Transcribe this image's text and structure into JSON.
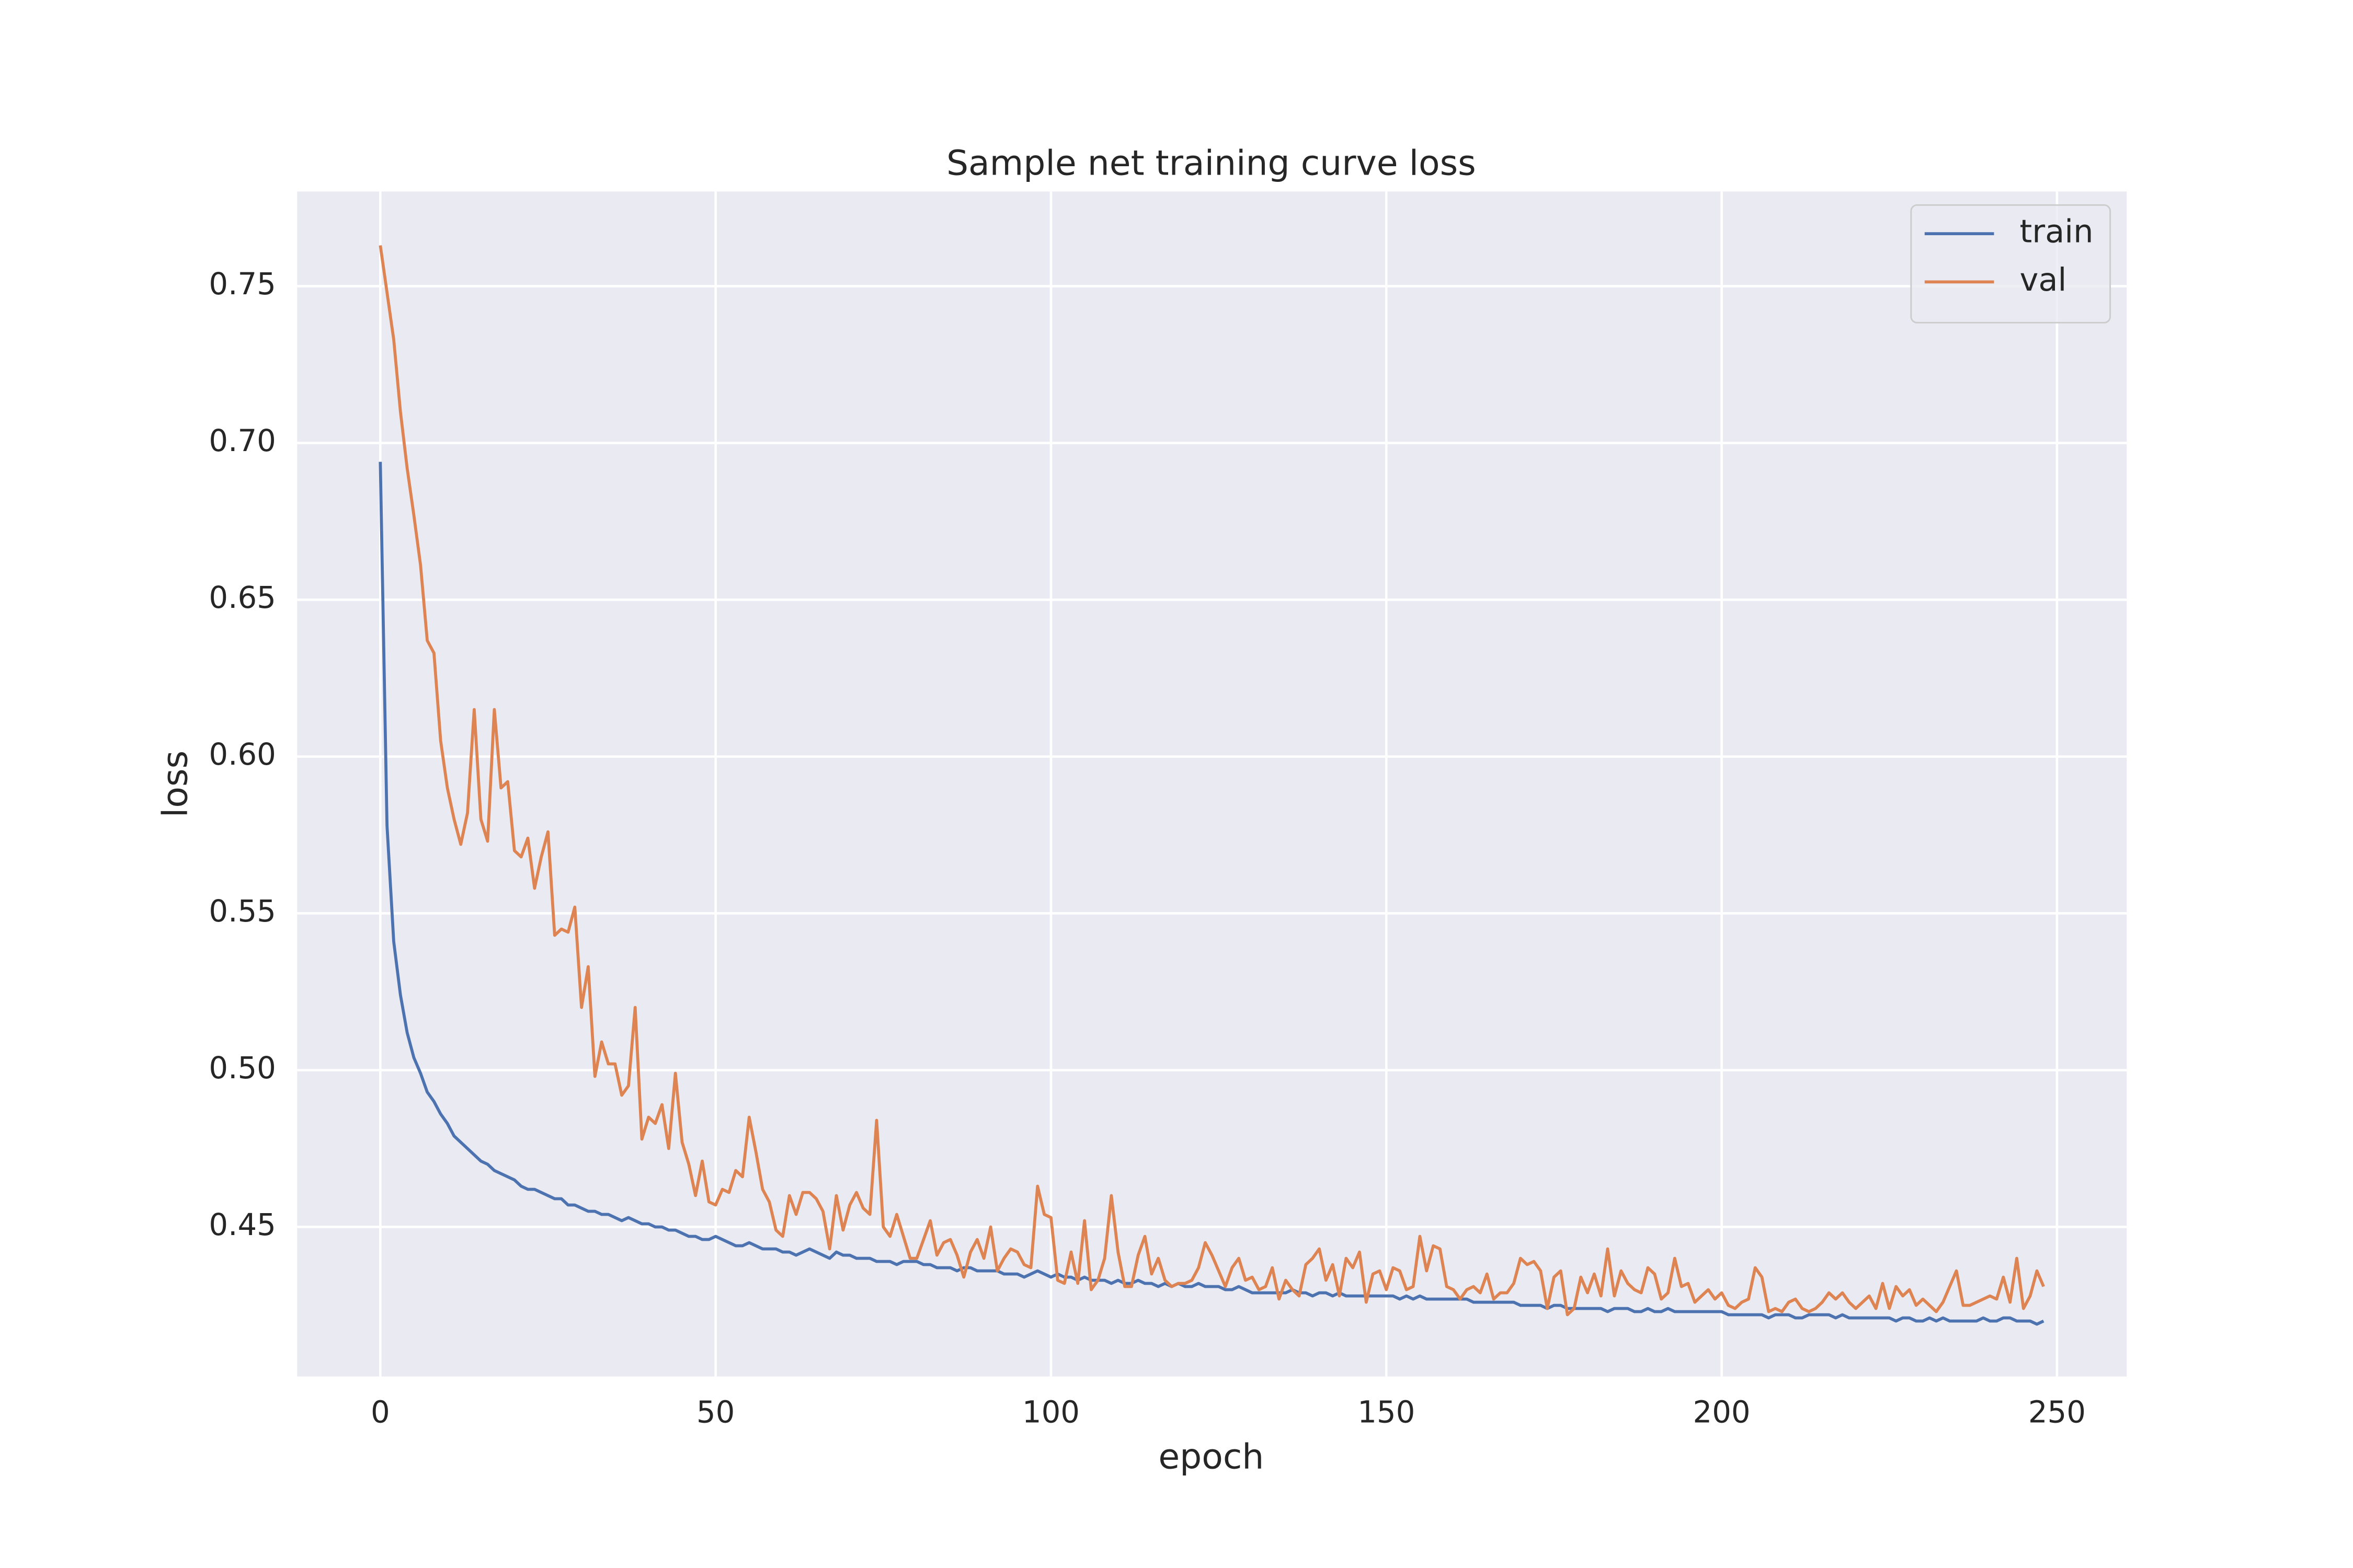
{
  "chart_data": {
    "type": "line",
    "title": "Sample net training curve loss",
    "xlabel": "epoch",
    "ylabel": "loss",
    "xlim": [
      -12.4,
      260.4
    ],
    "ylim": [
      0.4023,
      0.7802
    ],
    "xticks": [
      0,
      50,
      100,
      150,
      200,
      250
    ],
    "yticks": [
      0.45,
      {
        "value": 0.5,
        "label": "0.50"
      },
      0.55,
      {
        "value": 0.6,
        "label": "0.60"
      },
      0.65,
      {
        "value": 0.7,
        "label": "0.70"
      },
      0.75
    ],
    "grid": true,
    "legend": "upper right",
    "x": [
      0,
      1,
      2,
      3,
      4,
      5,
      6,
      7,
      8,
      9,
      10,
      11,
      12,
      13,
      14,
      15,
      16,
      17,
      18,
      19,
      20,
      21,
      22,
      23,
      24,
      25,
      26,
      27,
      28,
      29,
      30,
      31,
      32,
      33,
      34,
      35,
      36,
      37,
      38,
      39,
      40,
      41,
      42,
      43,
      44,
      45,
      46,
      47,
      48,
      49,
      50,
      51,
      52,
      53,
      54,
      55,
      56,
      57,
      58,
      59,
      60,
      61,
      62,
      63,
      64,
      65,
      66,
      67,
      68,
      69,
      70,
      71,
      72,
      73,
      74,
      75,
      76,
      77,
      78,
      79,
      80,
      81,
      82,
      83,
      84,
      85,
      86,
      87,
      88,
      89,
      90,
      91,
      92,
      93,
      94,
      95,
      96,
      97,
      98,
      99,
      100,
      101,
      102,
      103,
      104,
      105,
      106,
      107,
      108,
      109,
      110,
      111,
      112,
      113,
      114,
      115,
      116,
      117,
      118,
      119,
      120,
      121,
      122,
      123,
      124,
      125,
      126,
      127,
      128,
      129,
      130,
      131,
      132,
      133,
      134,
      135,
      136,
      137,
      138,
      139,
      140,
      141,
      142,
      143,
      144,
      145,
      146,
      147,
      148,
      149,
      150,
      151,
      152,
      153,
      154,
      155,
      156,
      157,
      158,
      159,
      160,
      161,
      162,
      163,
      164,
      165,
      166,
      167,
      168,
      169,
      170,
      171,
      172,
      173,
      174,
      175,
      176,
      177,
      178,
      179,
      180,
      181,
      182,
      183,
      184,
      185,
      186,
      187,
      188,
      189,
      190,
      191,
      192,
      193,
      194,
      195,
      196,
      197,
      198,
      199,
      200,
      201,
      202,
      203,
      204,
      205,
      206,
      207,
      208,
      209,
      210,
      211,
      212,
      213,
      214,
      215,
      216,
      217,
      218,
      219,
      220,
      221,
      222,
      223,
      224,
      225,
      226,
      227,
      228,
      229,
      230,
      231,
      232,
      233,
      234,
      235,
      236,
      237,
      238,
      239,
      240,
      241,
      242,
      243,
      244,
      245,
      246,
      247,
      248
    ],
    "series": [
      {
        "name": "train",
        "color": "#4c72b0",
        "values": [
          0.694,
          0.578,
          0.541,
          0.524,
          0.512,
          0.504,
          0.499,
          0.493,
          0.49,
          0.486,
          0.483,
          0.479,
          0.477,
          0.475,
          0.473,
          0.471,
          0.47,
          0.468,
          0.467,
          0.466,
          0.465,
          0.463,
          0.462,
          0.462,
          0.461,
          0.46,
          0.459,
          0.459,
          0.457,
          0.457,
          0.456,
          0.455,
          0.455,
          0.454,
          0.454,
          0.453,
          0.452,
          0.453,
          0.452,
          0.451,
          0.451,
          0.45,
          0.45,
          0.449,
          0.449,
          0.448,
          0.447,
          0.447,
          0.446,
          0.446,
          0.447,
          0.446,
          0.445,
          0.444,
          0.444,
          0.445,
          0.444,
          0.443,
          0.443,
          0.443,
          0.442,
          0.442,
          0.441,
          0.442,
          0.443,
          0.442,
          0.441,
          0.44,
          0.442,
          0.441,
          0.441,
          0.44,
          0.44,
          0.44,
          0.439,
          0.439,
          0.439,
          0.438,
          0.439,
          0.439,
          0.439,
          0.438,
          0.438,
          0.437,
          0.437,
          0.437,
          0.436,
          0.437,
          0.437,
          0.436,
          0.436,
          0.436,
          0.436,
          0.435,
          0.435,
          0.435,
          0.434,
          0.435,
          0.436,
          0.435,
          0.434,
          0.435,
          0.434,
          0.434,
          0.433,
          0.434,
          0.433,
          0.433,
          0.433,
          0.432,
          0.433,
          0.432,
          0.432,
          0.433,
          0.432,
          0.432,
          0.431,
          0.432,
          0.431,
          0.432,
          0.431,
          0.431,
          0.432,
          0.431,
          0.431,
          0.431,
          0.43,
          0.43,
          0.431,
          0.43,
          0.429,
          0.429,
          0.429,
          0.429,
          0.429,
          0.429,
          0.43,
          0.429,
          0.429,
          0.428,
          0.429,
          0.429,
          0.428,
          0.429,
          0.428,
          0.428,
          0.428,
          0.428,
          0.428,
          0.428,
          0.428,
          0.428,
          0.427,
          0.428,
          0.427,
          0.428,
          0.427,
          0.427,
          0.427,
          0.427,
          0.427,
          0.427,
          0.427,
          0.426,
          0.426,
          0.426,
          0.426,
          0.426,
          0.426,
          0.426,
          0.425,
          0.425,
          0.425,
          0.425,
          0.424,
          0.425,
          0.425,
          0.424,
          0.424,
          0.424,
          0.424,
          0.424,
          0.424,
          0.423,
          0.424,
          0.424,
          0.424,
          0.423,
          0.423,
          0.424,
          0.423,
          0.423,
          0.424,
          0.423,
          0.423,
          0.423,
          0.423,
          0.423,
          0.423,
          0.423,
          0.423,
          0.422,
          0.422,
          0.422,
          0.422,
          0.422,
          0.422,
          0.421,
          0.422,
          0.422,
          0.422,
          0.421,
          0.421,
          0.422,
          0.422,
          0.422,
          0.422,
          0.421,
          0.422,
          0.421,
          0.421,
          0.421,
          0.421,
          0.421,
          0.421,
          0.421,
          0.42,
          0.421,
          0.421,
          0.42,
          0.42,
          0.421,
          0.42,
          0.421,
          0.42,
          0.42,
          0.42,
          0.42,
          0.42,
          0.421,
          0.42,
          0.42,
          0.421,
          0.421,
          0.42,
          0.42,
          0.42,
          0.419,
          0.42
        ]
      },
      {
        "name": "val",
        "color": "#dd8452",
        "values": [
          0.763,
          0.748,
          0.733,
          0.71,
          0.692,
          0.677,
          0.661,
          0.637,
          0.633,
          0.605,
          0.59,
          0.58,
          0.572,
          0.582,
          0.615,
          0.58,
          0.573,
          0.615,
          0.59,
          0.592,
          0.57,
          0.568,
          0.574,
          0.558,
          0.568,
          0.576,
          0.543,
          0.545,
          0.544,
          0.552,
          0.52,
          0.533,
          0.498,
          0.509,
          0.502,
          0.502,
          0.492,
          0.495,
          0.52,
          0.478,
          0.485,
          0.483,
          0.489,
          0.475,
          0.499,
          0.477,
          0.47,
          0.46,
          0.471,
          0.458,
          0.457,
          0.462,
          0.461,
          0.468,
          0.466,
          0.485,
          0.474,
          0.462,
          0.458,
          0.449,
          0.447,
          0.46,
          0.454,
          0.461,
          0.461,
          0.459,
          0.455,
          0.443,
          0.46,
          0.449,
          0.457,
          0.461,
          0.456,
          0.454,
          0.484,
          0.45,
          0.447,
          0.454,
          0.447,
          0.44,
          0.44,
          0.446,
          0.452,
          0.441,
          0.445,
          0.446,
          0.441,
          0.434,
          0.442,
          0.446,
          0.44,
          0.45,
          0.436,
          0.44,
          0.443,
          0.442,
          0.438,
          0.437,
          0.463,
          0.454,
          0.453,
          0.433,
          0.432,
          0.442,
          0.432,
          0.452,
          0.43,
          0.433,
          0.44,
          0.46,
          0.442,
          0.431,
          0.431,
          0.441,
          0.447,
          0.435,
          0.44,
          0.433,
          0.431,
          0.432,
          0.432,
          0.433,
          0.437,
          0.445,
          0.441,
          0.436,
          0.431,
          0.437,
          0.44,
          0.433,
          0.434,
          0.43,
          0.431,
          0.437,
          0.427,
          0.433,
          0.43,
          0.428,
          0.438,
          0.44,
          0.443,
          0.433,
          0.438,
          0.428,
          0.44,
          0.437,
          0.442,
          0.426,
          0.435,
          0.436,
          0.43,
          0.437,
          0.436,
          0.43,
          0.431,
          0.447,
          0.436,
          0.444,
          0.443,
          0.431,
          0.43,
          0.427,
          0.43,
          0.431,
          0.429,
          0.435,
          0.427,
          0.429,
          0.429,
          0.432,
          0.44,
          0.438,
          0.439,
          0.436,
          0.424,
          0.434,
          0.436,
          0.422,
          0.424,
          0.434,
          0.429,
          0.435,
          0.428,
          0.443,
          0.428,
          0.436,
          0.432,
          0.43,
          0.429,
          0.437,
          0.435,
          0.427,
          0.429,
          0.44,
          0.431,
          0.432,
          0.426,
          0.428,
          0.43,
          0.427,
          0.429,
          0.425,
          0.424,
          0.426,
          0.427,
          0.437,
          0.434,
          0.423,
          0.424,
          0.423,
          0.426,
          0.427,
          0.424,
          0.423,
          0.424,
          0.426,
          0.429,
          0.427,
          0.429,
          0.426,
          0.424,
          0.426,
          0.428,
          0.424,
          0.432,
          0.424,
          0.431,
          0.428,
          0.43,
          0.425,
          0.427,
          0.425,
          0.423,
          0.426,
          0.431,
          0.436,
          0.425,
          0.425,
          0.426,
          0.427,
          0.428,
          0.427,
          0.434,
          0.426,
          0.44,
          0.424,
          0.428,
          0.436,
          0.431
        ]
      }
    ]
  }
}
